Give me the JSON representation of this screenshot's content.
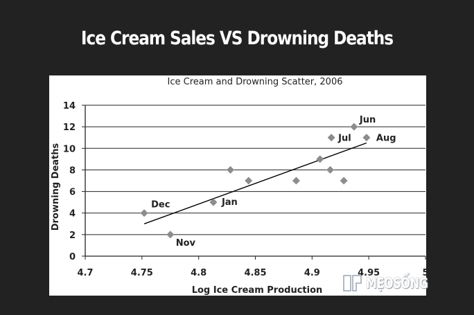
{
  "slide": {
    "title": "Ice Cream Sales VS Drowning Deaths"
  },
  "watermark": {
    "text": "MẸOSỐNG"
  },
  "colors": {
    "background": "#222222",
    "card": "#ffffff",
    "marker": "#8c8c8c",
    "line": "#000000",
    "grid": "#222222"
  },
  "chart_data": {
    "type": "scatter",
    "title": "Ice Cream and Drowning Scatter, 2006",
    "xlabel": "Log Ice Cream Production",
    "ylabel": "Drowning Deaths",
    "xlim": [
      4.7,
      5.0
    ],
    "ylim": [
      0,
      14
    ],
    "xticks": [
      "4.7",
      "4.75",
      "4.8",
      "4.85",
      "4.9",
      "4.95",
      "5"
    ],
    "yticks": [
      "0",
      "2",
      "4",
      "6",
      "8",
      "10",
      "12",
      "14"
    ],
    "grid": "horizontal",
    "points": [
      {
        "x": 4.752,
        "y": 4,
        "label": "Dec"
      },
      {
        "x": 4.775,
        "y": 2,
        "label": "Nov"
      },
      {
        "x": 4.813,
        "y": 5,
        "label": "Jan"
      },
      {
        "x": 4.828,
        "y": 8,
        "label": ""
      },
      {
        "x": 4.844,
        "y": 7,
        "label": ""
      },
      {
        "x": 4.886,
        "y": 7,
        "label": ""
      },
      {
        "x": 4.907,
        "y": 9,
        "label": ""
      },
      {
        "x": 4.916,
        "y": 8,
        "label": ""
      },
      {
        "x": 4.928,
        "y": 7,
        "label": ""
      },
      {
        "x": 4.917,
        "y": 11,
        "label": "Jul"
      },
      {
        "x": 4.937,
        "y": 12,
        "label": "Jun"
      },
      {
        "x": 4.948,
        "y": 11,
        "label": "Aug"
      }
    ],
    "trendline": {
      "x": [
        4.752,
        4.948
      ],
      "y": [
        3.0,
        10.5
      ]
    }
  }
}
